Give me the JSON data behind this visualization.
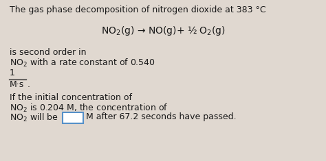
{
  "bg_color": "#e0d8d0",
  "title_line1": "The gas phase decomposition of nitrogen dioxide at 383 °C",
  "reaction": "NO$_2$(g) → NO(g)+ ½ O$_2$(g)",
  "line3": "is second order in",
  "line4": "NO$_2$ with a rate constant of 0.540",
  "fraction_num": "1",
  "fraction_den": "M·s",
  "fraction_dot": ".",
  "line6": "If the initial concentration of",
  "line7": "NO$_2$ is 0.204 M, the concentration of",
  "line8_pre": "NO$_2$ will be ",
  "line8_post": "M after 67.2 seconds have passed.",
  "text_color": "#1a1a1a",
  "box_color": "#5590c8",
  "font_size": 9.0
}
